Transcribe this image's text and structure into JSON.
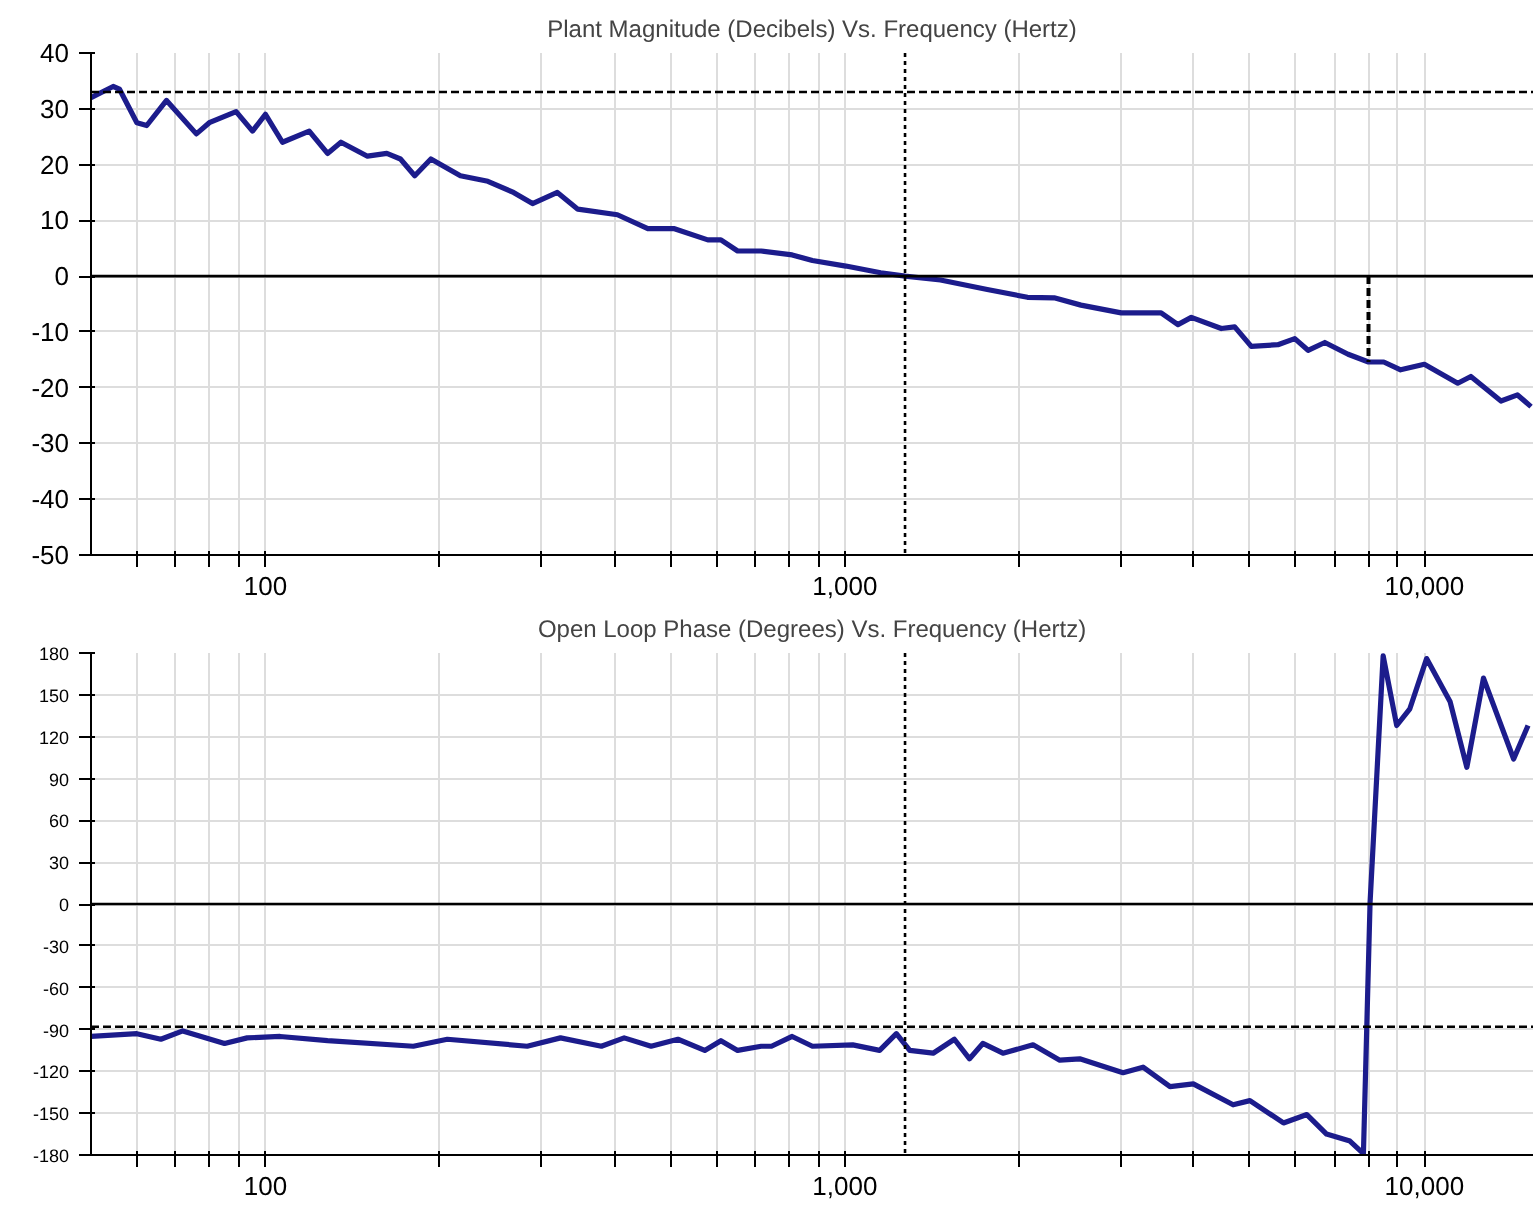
{
  "chart_data": [
    {
      "type": "line",
      "title": "Plant Magnitude (Decibels) Vs. Frequency (Hertz)",
      "log": "x",
      "grid": true,
      "marker": "none",
      "xlim": [
        50,
        15400
      ],
      "ylim": [
        -50,
        40
      ],
      "yticks": [
        -50,
        -40,
        -30,
        -20,
        -10,
        0,
        10,
        20,
        30,
        40
      ],
      "xticks": [
        {
          "value": 60,
          "label": null
        },
        {
          "value": 70,
          "label": null
        },
        {
          "value": 80,
          "label": null
        },
        {
          "value": 90,
          "label": null
        },
        {
          "value": 100,
          "label": "100"
        },
        {
          "value": 200,
          "label": null
        },
        {
          "value": 300,
          "label": null
        },
        {
          "value": 400,
          "label": null
        },
        {
          "value": 500,
          "label": null
        },
        {
          "value": 600,
          "label": null
        },
        {
          "value": 700,
          "label": null
        },
        {
          "value": 800,
          "label": null
        },
        {
          "value": 900,
          "label": null
        },
        {
          "value": 1000,
          "label": "1,000"
        },
        {
          "value": 2000,
          "label": null
        },
        {
          "value": 3000,
          "label": null
        },
        {
          "value": 4000,
          "label": null
        },
        {
          "value": 5000,
          "label": null
        },
        {
          "value": 6000,
          "label": null
        },
        {
          "value": 7000,
          "label": null
        },
        {
          "value": 8000,
          "label": null
        },
        {
          "value": 9000,
          "label": null
        },
        {
          "value": 10000,
          "label": "10,000"
        }
      ],
      "ref_lines": [
        {
          "axis": "y",
          "value": 0,
          "color": "#000000",
          "line_style": "solid"
        },
        {
          "axis": "y",
          "value": 33,
          "color": "#000000",
          "line_style": "dashed"
        },
        {
          "axis": "x",
          "value": 1270,
          "color": "#000000",
          "line_style": "dotted"
        }
      ],
      "series": [
        {
          "color": "#1c1c8c",
          "line_style": "solid",
          "x": [
            50,
            54.6,
            56,
            60,
            62.4,
            67.5,
            76,
            80,
            89,
            95,
            100,
            107,
            119,
            128,
            135,
            150,
            162,
            171,
            181,
            193,
            217,
            242,
            268,
            289,
            319,
            346,
            405,
            457,
            508,
            580,
            611,
            653,
            717,
            811,
            879,
            1004,
            1153,
            1270,
            1462,
            1761,
            2066,
            2297,
            2555,
            2998,
            3513,
            3756,
            3962,
            4463,
            4707,
            5027,
            5589,
            5976,
            6300,
            6734,
            7386,
            8010,
            8511,
            9100,
            10000,
            11420,
            12030,
            13560,
            14480,
            15280
          ],
          "values": [
            32,
            34,
            33.5,
            27.5,
            27,
            31.5,
            25.5,
            27.5,
            29.5,
            26,
            29,
            24,
            26,
            22,
            24,
            21.5,
            22,
            21,
            18,
            21,
            18,
            17,
            15,
            13,
            15,
            12,
            11,
            8.5,
            8.5,
            6.5,
            6.5,
            4.5,
            4.5,
            3.8,
            2.8,
            1.8,
            0.6,
            0,
            -0.7,
            -2.4,
            -3.8,
            -3.9,
            -5.2,
            -6.6,
            -6.6,
            -8.7,
            -7.4,
            -9.4,
            -9.1,
            -12.6,
            -12.3,
            -11.2,
            -13.3,
            -11.9,
            -14,
            -15.4,
            -15.4,
            -16.8,
            -15.8,
            -19.2,
            -18,
            -22.4,
            -21.3,
            -23.4
          ]
        },
        {
          "color": "#000000",
          "line_style": "dashed",
          "x": [
            8010,
            8010
          ],
          "values": [
            0,
            -15.4
          ]
        }
      ]
    },
    {
      "type": "line",
      "title": "Open Loop Phase (Degrees) Vs. Frequency (Hertz)",
      "log": "x",
      "grid": true,
      "marker": "none",
      "xlim": [
        50,
        15400
      ],
      "ylim": [
        -180,
        180
      ],
      "yticks": [
        -180,
        -150,
        -120,
        -90,
        -60,
        -30,
        0,
        30,
        60,
        90,
        120,
        150,
        180
      ],
      "xticks": [
        {
          "value": 60,
          "label": null
        },
        {
          "value": 70,
          "label": null
        },
        {
          "value": 80,
          "label": null
        },
        {
          "value": 90,
          "label": null
        },
        {
          "value": 100,
          "label": "100"
        },
        {
          "value": 200,
          "label": null
        },
        {
          "value": 300,
          "label": null
        },
        {
          "value": 400,
          "label": null
        },
        {
          "value": 500,
          "label": null
        },
        {
          "value": 600,
          "label": null
        },
        {
          "value": 700,
          "label": null
        },
        {
          "value": 800,
          "label": null
        },
        {
          "value": 900,
          "label": null
        },
        {
          "value": 1000,
          "label": "1,000"
        },
        {
          "value": 2000,
          "label": null
        },
        {
          "value": 3000,
          "label": null
        },
        {
          "value": 4000,
          "label": null
        },
        {
          "value": 5000,
          "label": null
        },
        {
          "value": 6000,
          "label": null
        },
        {
          "value": 7000,
          "label": null
        },
        {
          "value": 8000,
          "label": null
        },
        {
          "value": 9000,
          "label": null
        },
        {
          "value": 10000,
          "label": "10,000"
        }
      ],
      "ref_lines": [
        {
          "axis": "y",
          "value": 0,
          "color": "#000000",
          "line_style": "solid"
        },
        {
          "axis": "y",
          "value": -88,
          "color": "#000000",
          "line_style": "dashed"
        },
        {
          "axis": "x",
          "value": 1270,
          "color": "#000000",
          "line_style": "dotted"
        }
      ],
      "series": [
        {
          "color": "#1c1c8c",
          "line_style": "solid",
          "x": [
            50,
            60,
            66,
            72,
            85,
            93,
            106,
            128,
            180,
            206,
            283,
            323,
            380,
            416,
            463,
            515,
            573,
            611,
            653,
            717,
            747,
            811,
            879,
            1032,
            1148,
            1227,
            1294,
            1420,
            1545,
            1641,
            1730,
            1874,
            2112,
            2349,
            2543,
            3020,
            3270,
            3640,
            3993,
            4677,
            5000,
            5713,
            6270,
            6780,
            7440,
            7850,
            8060,
            8490,
            8960,
            9440,
            10090,
            11080,
            11840,
            12650,
            14260,
            15100
          ],
          "values": [
            -95,
            -93,
            -97,
            -91,
            -100,
            -96,
            -95,
            -98,
            -102,
            -97,
            -102,
            -96,
            -102,
            -96,
            -102,
            -97,
            -105,
            -98,
            -105,
            -102,
            -102,
            -95,
            -102,
            -101,
            -105,
            -93,
            -105,
            -107,
            -97,
            -111,
            -100,
            -107,
            -101,
            -112,
            -111,
            -121,
            -117,
            -131,
            -129,
            -144,
            -141,
            -157,
            -151,
            -165,
            -170,
            -179,
            1,
            178,
            128,
            140,
            176,
            145,
            98,
            162,
            104,
            128
          ]
        }
      ]
    }
  ]
}
